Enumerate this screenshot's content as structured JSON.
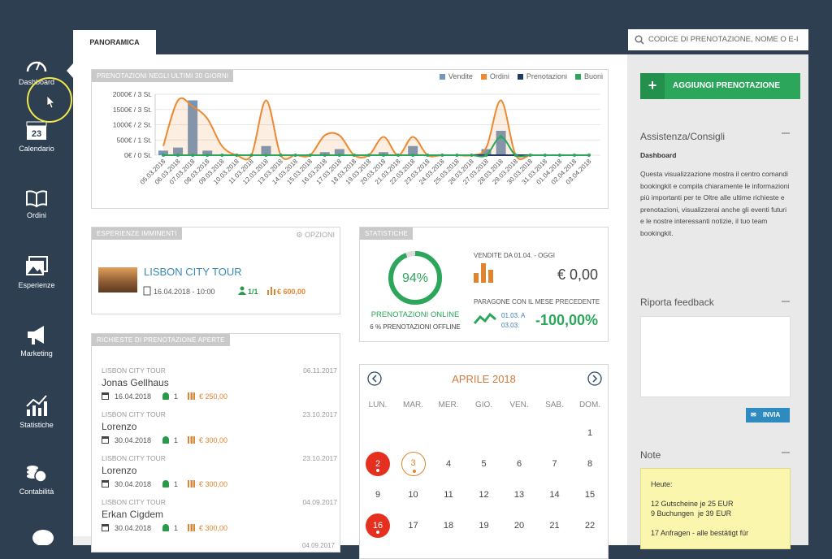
{
  "sidebar": {
    "items": [
      "Dashboard",
      "Calendario",
      "Ordini",
      "Esperienze",
      "Marketing",
      "Statistiche",
      "Contabilità"
    ],
    "calendar_icon_day": "23"
  },
  "tab": "PANORAMICA",
  "search_placeholder": "CODICE DI PRENOTAZIONE, NOME O E-I",
  "chart_data": {
    "type": "line",
    "title": "PRENOTAZIONI NEGLI ULTIMI 30 GIORNI",
    "categories": [
      "05.03.2018",
      "06.03.2018",
      "07.03.2018",
      "08.03.2018",
      "09.03.2018",
      "10.03.2018",
      "11.03.2018",
      "12.03.2018",
      "13.03.2018",
      "14.03.2018",
      "15.03.2018",
      "16.03.2018",
      "17.03.2018",
      "18.03.2018",
      "19.03.2018",
      "20.03.2018",
      "21.03.2018",
      "22.03.2018",
      "23.03.2018",
      "24.03.2018",
      "25.03.2018",
      "26.03.2018",
      "27.03.2018",
      "28.03.2018",
      "29.03.2018",
      "30.03.2018",
      "31.03.2018",
      "01.04.2018",
      "02.04.2018",
      "03.04.2018"
    ],
    "series": [
      {
        "name": "Vendite",
        "color": "#7396be",
        "type": "bar",
        "values": [
          150,
          250,
          1800,
          150,
          0,
          0,
          0,
          300,
          0,
          0,
          0,
          100,
          200,
          0,
          0,
          100,
          0,
          300,
          0,
          0,
          0,
          0,
          200,
          800,
          0,
          0,
          0,
          0,
          0,
          0
        ]
      },
      {
        "name": "Ordini",
        "color": "#ec8a34",
        "area": true,
        "values": [
          300,
          1800,
          1600,
          1200,
          300,
          0,
          0,
          1800,
          0,
          0,
          0,
          650,
          650,
          0,
          0,
          600,
          0,
          600,
          0,
          0,
          0,
          0,
          250,
          1800,
          0,
          0,
          0,
          0,
          0,
          0
        ]
      },
      {
        "name": "Prenotazioni",
        "color": "#1f3b63",
        "values": [
          0,
          0,
          0,
          0,
          0,
          0,
          0,
          0,
          0,
          0,
          0,
          0,
          0,
          0,
          0,
          0,
          0,
          0,
          0,
          0,
          0,
          0,
          0,
          0,
          0,
          0,
          0,
          0,
          0,
          0
        ]
      },
      {
        "name": "Buoni",
        "color": "#2ca65a",
        "markers": true,
        "values": [
          0,
          0,
          0,
          0,
          0,
          0,
          0,
          0,
          0,
          0,
          0,
          0,
          0,
          0,
          0,
          0,
          0,
          0,
          0,
          0,
          0,
          0,
          0,
          600,
          0,
          0,
          0,
          0,
          0,
          0
        ]
      }
    ],
    "ylim": [
      0,
      2000
    ],
    "yticks": [
      {
        "value": 0,
        "label": "0€ / 0 St."
      },
      {
        "value": 500,
        "label": "500€ / 1 St."
      },
      {
        "value": 1000,
        "label": "1000€ / 2 St."
      },
      {
        "value": 1500,
        "label": "1500€ / 3 St."
      },
      {
        "value": 2000,
        "label": "2000€ / 3 St."
      }
    ],
    "grid": true
  },
  "upcoming": {
    "title": "ESPERIENZE IMMINENTI",
    "options": "OPZIONI",
    "tour": "LISBON CITY TOUR",
    "datetime": "16.04.2018 - 10:00",
    "participants": "1/1",
    "amount": "€ 600,00"
  },
  "stats": {
    "title": "STATISTICHE",
    "online": {
      "value": 94,
      "label": "94%"
    },
    "online_label": "PRENOTAZIONI ONLINE",
    "offline_label": "6 % PRENOTAZIONI OFFLINE",
    "sales_label": "VENDITE DA 01.04. - OGGI",
    "sales_amount": "€ 0,00",
    "compare_label": "PARAGONE CON IL MESE PRECEDENTE",
    "compare_from": "01.03. A",
    "compare_to": "03.03.",
    "compare_value": "-100,00%"
  },
  "requests": {
    "title": "RICHIESTE DI PRENOTAZIONE APERTE",
    "items": [
      {
        "tour": "LISBON CITY TOUR",
        "name": "Jonas Gellhaus",
        "date": "16.04.2018",
        "count": "1",
        "amount": "€ 250,00",
        "created": "06.11.2017"
      },
      {
        "tour": "LISBON CITY TOUR",
        "name": "Lorenzo",
        "date": "30.04.2018",
        "count": "1",
        "amount": "€ 300,00",
        "created": "23.10.2017"
      },
      {
        "tour": "LISBON CITY TOUR",
        "name": "Lorenzo",
        "date": "30.04.2018",
        "count": "1",
        "amount": "€ 300,00",
        "created": "23.10.2017"
      },
      {
        "tour": "LISBON CITY TOUR",
        "name": "Erkan Cigdem",
        "date": "30.04.2018",
        "count": "1",
        "amount": "€ 300,00",
        "created": "04.09.2017"
      }
    ],
    "last_created": "04.09.2017"
  },
  "calendar": {
    "month": "APRILE 2018",
    "weekdays": [
      "LUN.",
      "MAR.",
      "MER.",
      "GIO.",
      "VEN.",
      "SAB.",
      "DOM."
    ],
    "weeks": [
      [
        null,
        null,
        null,
        null,
        null,
        null,
        1
      ],
      [
        {
          "day": 2,
          "status": "booked"
        },
        {
          "day": 3,
          "status": "pending"
        },
        4,
        5,
        6,
        7,
        8
      ],
      [
        9,
        10,
        11,
        12,
        13,
        14,
        15
      ],
      [
        {
          "day": 16,
          "status": "booked"
        },
        17,
        18,
        19,
        20,
        21,
        22
      ]
    ]
  },
  "right": {
    "add_button": "AGGIUNGI PRENOTAZIONE",
    "help_title": "Assistenza/Consigli",
    "help_subtitle": "Dashboard",
    "help_text": "Questa visualizzazione mostra il centro comandi bookingkit e compila chiaramente le informazioni più importanti per te Oltre alle ultime richieste e prenotazioni, visualizzerai anche gli eventi futuri e le nostre interessanti notizie, il tuo team bookingkit.",
    "feedback_title": "Riporta feedback",
    "send": "INVIA",
    "notes_title": "Note",
    "notes": [
      "Heute:",
      "12 Gutscheine je 25 EUR",
      "9 Buchungen  je 39 EUR",
      "17 Anfragen - alle bestätigt für"
    ]
  }
}
